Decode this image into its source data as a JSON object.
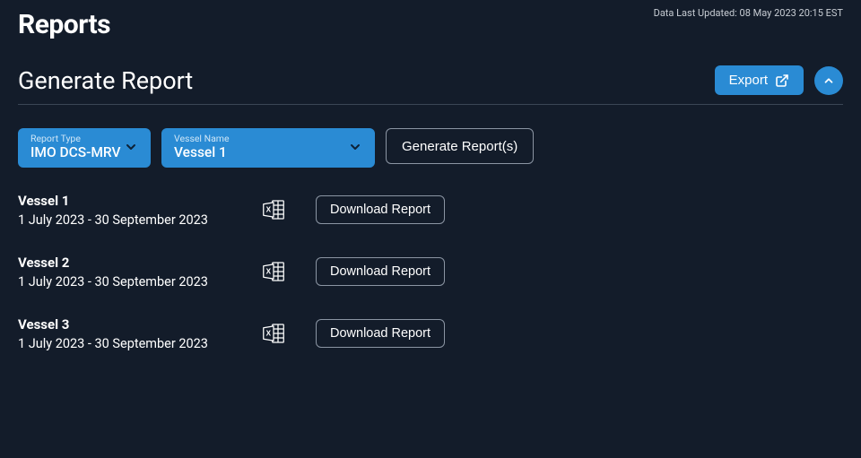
{
  "timestamp": "Data Last Updated: 08 May 2023 20:15 EST",
  "page_title": "Reports",
  "section_title": "Generate Report",
  "export_label": "Export",
  "report_type": {
    "label": "Report Type",
    "value": "IMO DCS-MRV"
  },
  "vessel_select": {
    "label": "Vessel Name",
    "value": "Vessel 1"
  },
  "generate_label": "Generate Report(s)",
  "download_label": "Download Report",
  "vessels": [
    {
      "name": "Vessel 1",
      "range": "1 July 2023 - 30 September 2023"
    },
    {
      "name": "Vessel 2",
      "range": "1 July 2023 - 30 September 2023"
    },
    {
      "name": "Vessel 3",
      "range": "1 July 2023 - 30 September 2023"
    }
  ],
  "colors": {
    "background": "#131c2a",
    "accent": "#2a8bd4",
    "border": "#8b95a3",
    "divider": "#3b4655"
  }
}
